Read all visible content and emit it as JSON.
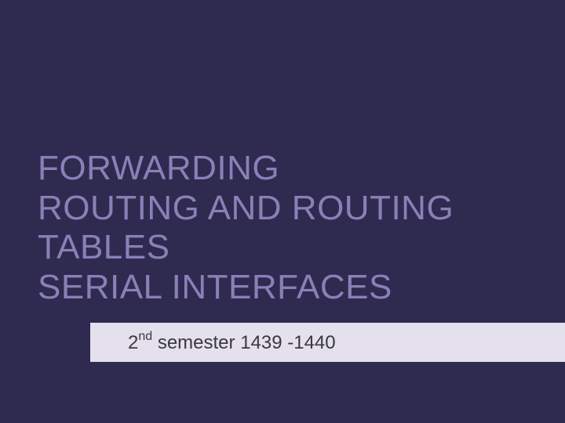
{
  "slide": {
    "background_color": "#2f2a4f",
    "title": {
      "line1": "FORWARDING",
      "line2": "ROUTING AND ROUTING",
      "line3": "TABLES",
      "line4": "SERIAL INTERFACES",
      "color": "#8a80b8",
      "font_size": 44,
      "font_weight": 400
    },
    "subtitle": {
      "ordinal_number": "2",
      "ordinal_suffix": "nd",
      "text_rest": " semester 1439 -1440",
      "bar_color": "#e4e0ed",
      "text_color": "#3a3a3a",
      "font_size": 24
    }
  }
}
